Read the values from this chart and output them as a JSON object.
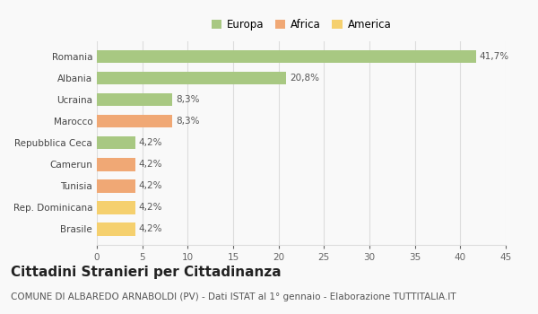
{
  "categories": [
    "Brasile",
    "Rep. Dominicana",
    "Tunisia",
    "Camerun",
    "Repubblica Ceca",
    "Marocco",
    "Ucraina",
    "Albania",
    "Romania"
  ],
  "values": [
    4.2,
    4.2,
    4.2,
    4.2,
    4.2,
    8.3,
    8.3,
    20.8,
    41.7
  ],
  "labels": [
    "4,2%",
    "4,2%",
    "4,2%",
    "4,2%",
    "4,2%",
    "8,3%",
    "8,3%",
    "20,8%",
    "41,7%"
  ],
  "colors": [
    "#f5d06e",
    "#f5d06e",
    "#f0a875",
    "#f0a875",
    "#a8c882",
    "#f0a875",
    "#a8c882",
    "#a8c882",
    "#a8c882"
  ],
  "legend_labels": [
    "Europa",
    "Africa",
    "America"
  ],
  "legend_colors": [
    "#a8c882",
    "#f0a875",
    "#f5d06e"
  ],
  "title": "Cittadini Stranieri per Cittadinanza",
  "subtitle": "COMUNE DI ALBAREDO ARNABOLDI (PV) - Dati ISTAT al 1° gennaio - Elaborazione TUTTITALIA.IT",
  "xlim": [
    0,
    45
  ],
  "xticks": [
    0,
    5,
    10,
    15,
    20,
    25,
    30,
    35,
    40,
    45
  ],
  "background_color": "#f9f9f9",
  "grid_color": "#dddddd",
  "title_fontsize": 11,
  "subtitle_fontsize": 7.5,
  "label_fontsize": 7.5,
  "tick_fontsize": 7.5,
  "legend_fontsize": 8.5
}
